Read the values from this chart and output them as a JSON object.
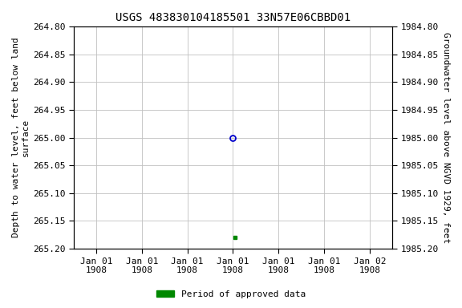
{
  "title": "USGS 483830104185501 33N57E06CBBD01",
  "ylabel_left": "Depth to water level, feet below land\nsurface",
  "ylabel_right": "Groundwater level above NGVD 1929, feet",
  "ylim_left": [
    264.8,
    265.2
  ],
  "ylim_right_top": 1985.2,
  "ylim_right_bottom": 1984.8,
  "yticks_left": [
    264.8,
    264.85,
    264.9,
    264.95,
    265.0,
    265.05,
    265.1,
    265.15,
    265.2
  ],
  "yticks_right": [
    1985.2,
    1985.15,
    1985.1,
    1985.05,
    1985.0,
    1984.95,
    1984.9,
    1984.85,
    1984.8
  ],
  "xtick_labels": [
    "Jan 01\n1908",
    "Jan 01\n1908",
    "Jan 01\n1908",
    "Jan 01\n1908",
    "Jan 01\n1908",
    "Jan 01\n1908",
    "Jan 02\n1908"
  ],
  "xtick_positions": [
    0,
    1,
    2,
    3,
    4,
    5,
    6
  ],
  "xlim": [
    -0.5,
    6.5
  ],
  "point_blue_x": 3.0,
  "point_blue_y": 265.0,
  "point_green_x": 3.05,
  "point_green_y": 265.18,
  "point_blue_color": "#0000cc",
  "point_green_color": "#008800",
  "legend_label": "Period of approved data",
  "legend_color": "#008800",
  "background_color": "#ffffff",
  "grid_color": "#c0c0c0",
  "title_fontsize": 10,
  "label_fontsize": 8,
  "tick_fontsize": 8
}
